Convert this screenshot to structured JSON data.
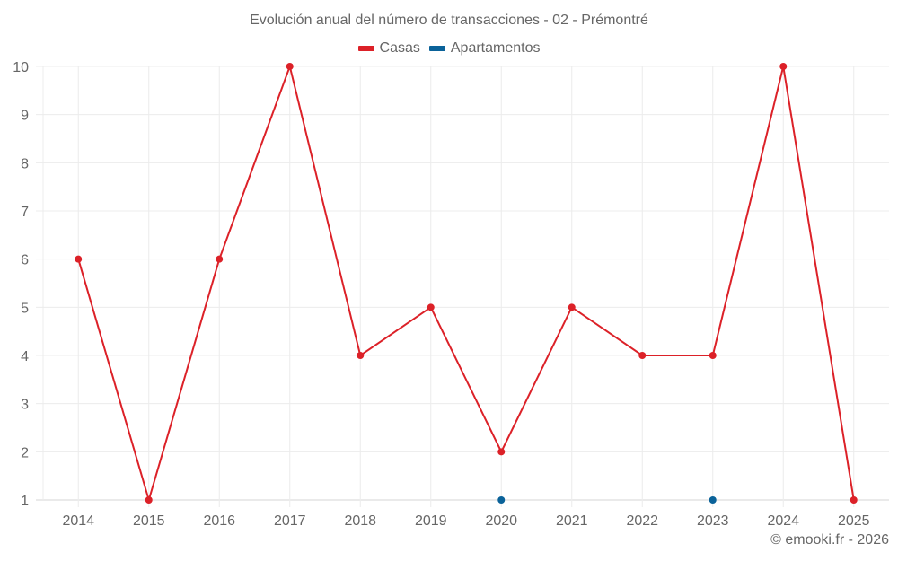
{
  "title": "Evolución anual del número de transacciones - 02 - Prémontré",
  "legend": [
    {
      "label": "Casas",
      "color": "#dc2128"
    },
    {
      "label": "Apartamentos",
      "color": "#0a6299"
    }
  ],
  "footer": "© emooki.fr - 2026",
  "chart_data": {
    "type": "line",
    "title": "Evolución anual del número de transacciones - 02 - Prémontré",
    "xlabel": "",
    "ylabel": "",
    "categories": [
      "2014",
      "2015",
      "2016",
      "2017",
      "2018",
      "2019",
      "2020",
      "2021",
      "2022",
      "2023",
      "2024",
      "2025"
    ],
    "series": [
      {
        "name": "Casas",
        "color": "#dc2128",
        "values": [
          6,
          1,
          6,
          10,
          4,
          5,
          2,
          5,
          4,
          4,
          10,
          1
        ]
      },
      {
        "name": "Apartamentos",
        "color": "#0a6299",
        "values": [
          null,
          null,
          null,
          null,
          null,
          null,
          1,
          null,
          null,
          1,
          null,
          null
        ]
      }
    ],
    "ylim": [
      1,
      10
    ],
    "yticks": [
      1,
      2,
      3,
      4,
      5,
      6,
      7,
      8,
      9,
      10
    ],
    "grid": true,
    "legend_position": "top"
  }
}
